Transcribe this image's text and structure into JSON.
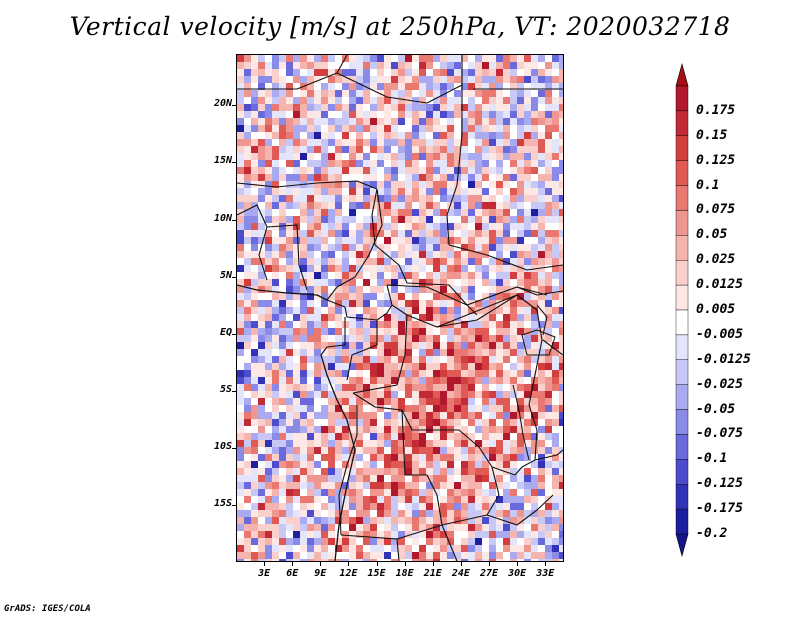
{
  "title": "Vertical velocity [m/s] at 250hPa, VT: 2020032718",
  "credit": "GrADS: IGES/COLA",
  "map": {
    "field": "vertical velocity",
    "units": "m/s",
    "level": "250hPa",
    "valid_time": "2020032718",
    "lon_range": [
      0,
      35
    ],
    "lat_range": [
      -20,
      24.5
    ],
    "lat_ticks": [
      {
        "value": 20,
        "label": "20N"
      },
      {
        "value": 15,
        "label": "15N"
      },
      {
        "value": 10,
        "label": "10N"
      },
      {
        "value": 5,
        "label": "5N"
      },
      {
        "value": 0,
        "label": "EQ"
      },
      {
        "value": -5,
        "label": "5S"
      },
      {
        "value": -10,
        "label": "10S"
      },
      {
        "value": -15,
        "label": "15S"
      }
    ],
    "lon_ticks": [
      {
        "value": 3,
        "label": "3E"
      },
      {
        "value": 6,
        "label": "6E"
      },
      {
        "value": 9,
        "label": "9E"
      },
      {
        "value": 12,
        "label": "12E"
      },
      {
        "value": 15,
        "label": "15E"
      },
      {
        "value": 18,
        "label": "18E"
      },
      {
        "value": 21,
        "label": "21E"
      },
      {
        "value": 24,
        "label": "24E"
      },
      {
        "value": 27,
        "label": "27E"
      },
      {
        "value": 30,
        "label": "30E"
      },
      {
        "value": 33,
        "label": "33E"
      }
    ]
  },
  "colorbar": {
    "levels": [
      {
        "label": "0.175",
        "color": "#b2182b"
      },
      {
        "label": "0.15",
        "color": "#c22a35"
      },
      {
        "label": "0.125",
        "color": "#d23e3e"
      },
      {
        "label": "0.1",
        "color": "#e05a55"
      },
      {
        "label": "0.075",
        "color": "#e87870"
      },
      {
        "label": "0.05",
        "color": "#f09690"
      },
      {
        "label": "0.025",
        "color": "#f6b4ae"
      },
      {
        "label": "0.0125",
        "color": "#fad0cc"
      },
      {
        "label": "0.005",
        "color": "#fde8e6"
      },
      {
        "label": "-0.005",
        "color": "#ffffff"
      },
      {
        "label": "-0.0125",
        "color": "#e4e4fb"
      },
      {
        "label": "-0.025",
        "color": "#c8c8f6"
      },
      {
        "label": "-0.05",
        "color": "#aaaaf0"
      },
      {
        "label": "-0.075",
        "color": "#8a8ae8"
      },
      {
        "label": "-0.1",
        "color": "#6a6adc"
      },
      {
        "label": "-0.125",
        "color": "#4c4ccc"
      },
      {
        "label": "-0.175",
        "color": "#3232b8"
      },
      {
        "label": "-0.2",
        "color": "#1e1ea0"
      }
    ],
    "top_extend_color": "#a50f15",
    "bottom_extend_color": "#14148c"
  },
  "colors": {
    "positive_accent": "#d23e3e",
    "negative_accent": "#4c4ccc",
    "background": "#ffffff",
    "border": "#000000"
  }
}
